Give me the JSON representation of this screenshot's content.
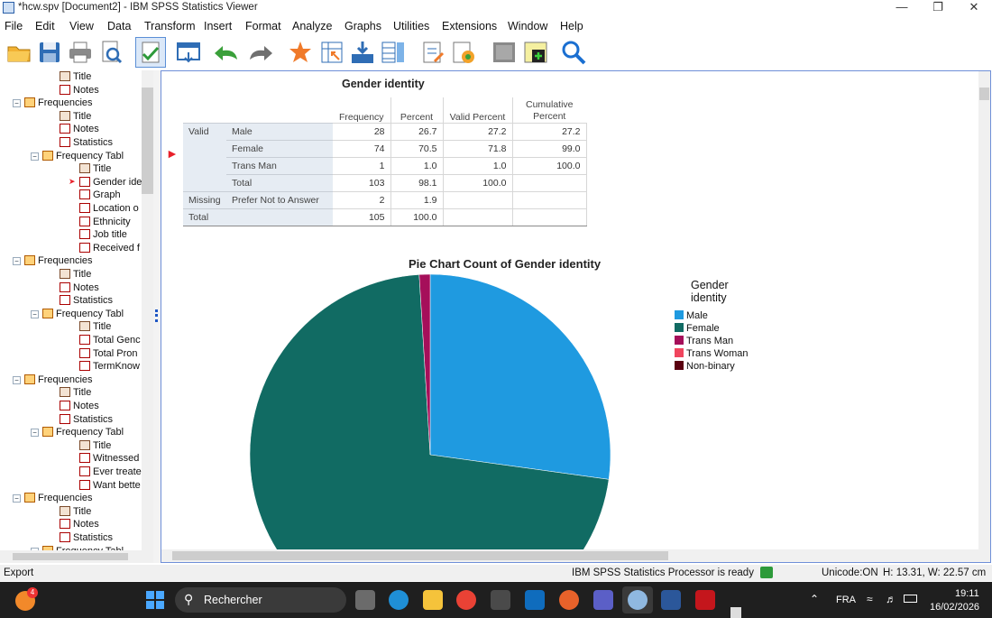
{
  "window": {
    "title": "*hcw.spv [Document2] - IBM SPSS Statistics Viewer",
    "min_glyph": "—",
    "max_glyph": "❐",
    "close_glyph": "✕"
  },
  "menu": [
    "File",
    "Edit",
    "View",
    "Data",
    "Transform",
    "Insert",
    "Format",
    "Analyze",
    "Graphs",
    "Utilities",
    "Extensions",
    "Window",
    "Help"
  ],
  "toolbar": {
    "icons": [
      "open-icon",
      "save-icon",
      "print-icon",
      "print-preview-icon",
      "export-icon",
      "recall-dialog-icon",
      "undo-icon",
      "redo-icon",
      "goto-data-icon",
      "goto-case-icon",
      "goto-variable-icon",
      "variables-icon",
      "show-all-icon",
      "designate-window-icon",
      "hide-icon",
      "insert-output-icon",
      "search-icon"
    ]
  },
  "tree": {
    "items": [
      {
        "label": "Title",
        "level": 3,
        "icon": "doc"
      },
      {
        "label": "Notes",
        "level": 3,
        "icon": "red"
      },
      {
        "label": "Frequencies",
        "level": 1,
        "icon": "book",
        "exp": "−"
      },
      {
        "label": "Title",
        "level": 3,
        "icon": "doc"
      },
      {
        "label": "Notes",
        "level": 3,
        "icon": "red"
      },
      {
        "label": "Statistics",
        "level": 3,
        "icon": "red"
      },
      {
        "label": "Frequency Tabl",
        "level": 2,
        "icon": "book",
        "exp": "−"
      },
      {
        "label": "Title",
        "level": 4,
        "icon": "doc"
      },
      {
        "label": "Gender ide",
        "level": 4,
        "icon": "red",
        "marker": true
      },
      {
        "label": "Graph",
        "level": 4,
        "icon": "red"
      },
      {
        "label": "Location o",
        "level": 4,
        "icon": "red"
      },
      {
        "label": "Ethnicity",
        "level": 4,
        "icon": "red"
      },
      {
        "label": "Job title",
        "level": 4,
        "icon": "red"
      },
      {
        "label": "Received f",
        "level": 4,
        "icon": "red"
      },
      {
        "label": "Frequencies",
        "level": 1,
        "icon": "book",
        "exp": "−"
      },
      {
        "label": "Title",
        "level": 3,
        "icon": "doc"
      },
      {
        "label": "Notes",
        "level": 3,
        "icon": "red"
      },
      {
        "label": "Statistics",
        "level": 3,
        "icon": "red"
      },
      {
        "label": "Frequency Tabl",
        "level": 2,
        "icon": "book",
        "exp": "−"
      },
      {
        "label": "Title",
        "level": 4,
        "icon": "doc"
      },
      {
        "label": "Total Genc",
        "level": 4,
        "icon": "red"
      },
      {
        "label": "Total Pron",
        "level": 4,
        "icon": "red"
      },
      {
        "label": "TermKnow",
        "level": 4,
        "icon": "red"
      },
      {
        "label": "Frequencies",
        "level": 1,
        "icon": "book",
        "exp": "−"
      },
      {
        "label": "Title",
        "level": 3,
        "icon": "doc"
      },
      {
        "label": "Notes",
        "level": 3,
        "icon": "red"
      },
      {
        "label": "Statistics",
        "level": 3,
        "icon": "red"
      },
      {
        "label": "Frequency Tabl",
        "level": 2,
        "icon": "book",
        "exp": "−"
      },
      {
        "label": "Title",
        "level": 4,
        "icon": "doc"
      },
      {
        "label": "Witnessed",
        "level": 4,
        "icon": "red"
      },
      {
        "label": "Ever treate",
        "level": 4,
        "icon": "red"
      },
      {
        "label": "Want bette",
        "level": 4,
        "icon": "red"
      },
      {
        "label": "Frequencies",
        "level": 1,
        "icon": "book",
        "exp": "−"
      },
      {
        "label": "Title",
        "level": 3,
        "icon": "doc"
      },
      {
        "label": "Notes",
        "level": 3,
        "icon": "red"
      },
      {
        "label": "Statistics",
        "level": 3,
        "icon": "red"
      },
      {
        "label": "Frequency Tabl",
        "level": 2,
        "icon": "book",
        "exp": "−"
      }
    ]
  },
  "freq_table": {
    "title": "Gender identity",
    "headers": [
      "Frequency",
      "Percent",
      "Valid Percent",
      "Cumulative Percent"
    ],
    "rows": [
      {
        "group": "Valid",
        "label": "Male",
        "freq": "28",
        "pct": "26.7",
        "valid": "27.2",
        "cum": "27.2"
      },
      {
        "group": "",
        "label": "Female",
        "freq": "74",
        "pct": "70.5",
        "valid": "71.8",
        "cum": "99.0"
      },
      {
        "group": "",
        "label": "Trans Man",
        "freq": "1",
        "pct": "1.0",
        "valid": "1.0",
        "cum": "100.0"
      },
      {
        "group": "",
        "label": "Total",
        "freq": "103",
        "pct": "98.1",
        "valid": "100.0",
        "cum": ""
      },
      {
        "group": "Missing",
        "label": "Prefer Not to Answer",
        "freq": "2",
        "pct": "1.9",
        "valid": "",
        "cum": ""
      },
      {
        "group": "Total",
        "label": "",
        "freq": "105",
        "pct": "100.0",
        "valid": "",
        "cum": ""
      }
    ]
  },
  "chart_data": {
    "type": "pie",
    "title": "Pie Chart Count of Gender identity",
    "legend_title": "Gender identity",
    "legend_position": "right",
    "slices": [
      {
        "label": "Male",
        "value": 28,
        "color": "#1f9ae0"
      },
      {
        "label": "Female",
        "value": 74,
        "color": "#116b63"
      },
      {
        "label": "Trans Man",
        "value": 1,
        "color": "#a50f5a"
      },
      {
        "label": "Trans Woman",
        "value": 0,
        "color": "#f0455e"
      },
      {
        "label": "Non-binary",
        "value": 0,
        "color": "#5a0010"
      }
    ]
  },
  "statusbar": {
    "left": "Export",
    "processor": "IBM SPSS Statistics Processor is ready",
    "unicode": "Unicode:ON",
    "size": "H: 13.31, W: 22.57 cm"
  },
  "taskbar": {
    "search": "Rechercher",
    "lang": "FRA",
    "time": "19:11",
    "date": "16/02/2026",
    "badge": "4"
  }
}
